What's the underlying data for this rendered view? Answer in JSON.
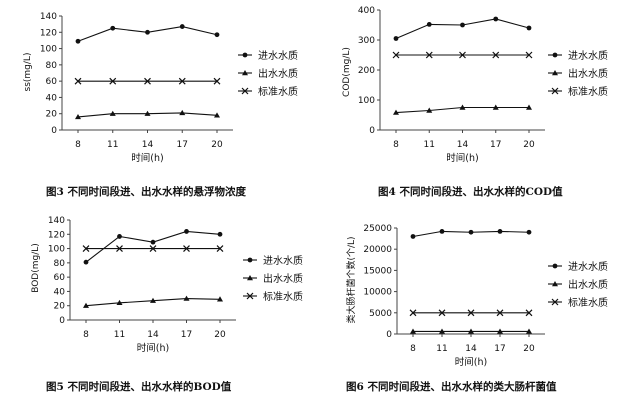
{
  "chart_data": [
    {
      "type": "line",
      "caption": "图3 不同时间段进、出水水样的悬浮物浓度",
      "ylabel": "ss(mg/L)",
      "xlabel": "时间(h)",
      "x": [
        8,
        11,
        14,
        17,
        20
      ],
      "ylim": [
        0,
        140
      ],
      "yticks": [
        0,
        20,
        40,
        60,
        80,
        100,
        120,
        140
      ],
      "series": [
        {
          "name": "进水水质",
          "values": [
            109,
            125,
            120,
            127,
            117
          ],
          "marker": "circle"
        },
        {
          "name": "出水水质",
          "values": [
            16,
            20,
            20,
            21,
            18
          ],
          "marker": "triangle"
        },
        {
          "name": "标准水质",
          "values": [
            60,
            60,
            60,
            60,
            60
          ],
          "marker": "x"
        }
      ]
    },
    {
      "type": "line",
      "caption": "图4 不同时间段进、出水水样的COD值",
      "ylabel": "COD(mg/L)",
      "xlabel": "时间(h)",
      "x": [
        8,
        11,
        14,
        17,
        20
      ],
      "ylim": [
        0,
        400
      ],
      "yticks": [
        0,
        100,
        200,
        300,
        400
      ],
      "series": [
        {
          "name": "进水水质",
          "values": [
            305,
            352,
            350,
            370,
            340
          ],
          "marker": "circle"
        },
        {
          "name": "出水水质",
          "values": [
            58,
            65,
            75,
            75,
            75
          ],
          "marker": "triangle"
        },
        {
          "name": "标准水质",
          "values": [
            250,
            250,
            250,
            250,
            250
          ],
          "marker": "x"
        }
      ]
    },
    {
      "type": "line",
      "caption": "图5 不同时间段进、出水水样的BOD值",
      "ylabel": "BOD(mg/L)",
      "xlabel": "时间(h)",
      "x": [
        8,
        11,
        14,
        17,
        20
      ],
      "ylim": [
        0,
        140
      ],
      "yticks": [
        0,
        20,
        40,
        60,
        80,
        100,
        120,
        140
      ],
      "series": [
        {
          "name": "进水水质",
          "values": [
            81,
            117,
            109,
            124,
            120
          ],
          "marker": "circle"
        },
        {
          "name": "出水水质",
          "values": [
            20,
            24,
            27,
            30,
            29
          ],
          "marker": "triangle"
        },
        {
          "name": "标准水质",
          "values": [
            100,
            100,
            100,
            100,
            100
          ],
          "marker": "x"
        }
      ]
    },
    {
      "type": "line",
      "caption": "图6 不同时间段进、出水水样的类大肠杆菌值",
      "ylabel": "类大肠杆菌个数(个/L)",
      "xlabel": "时间(h)",
      "x": [
        8,
        11,
        14,
        17,
        20
      ],
      "ylim": [
        0,
        25000
      ],
      "yticks": [
        0,
        5000,
        10000,
        15000,
        20000,
        25000
      ],
      "series": [
        {
          "name": "进水水质",
          "values": [
            23000,
            24200,
            24000,
            24200,
            24000
          ],
          "marker": "circle"
        },
        {
          "name": "出水水质",
          "values": [
            600,
            600,
            600,
            600,
            600
          ],
          "marker": "triangle"
        },
        {
          "name": "标准水质",
          "values": [
            5000,
            5000,
            5000,
            5000,
            5000
          ],
          "marker": "x"
        }
      ]
    }
  ],
  "colors": {
    "ink": "#111111",
    "axis": "#444444"
  }
}
